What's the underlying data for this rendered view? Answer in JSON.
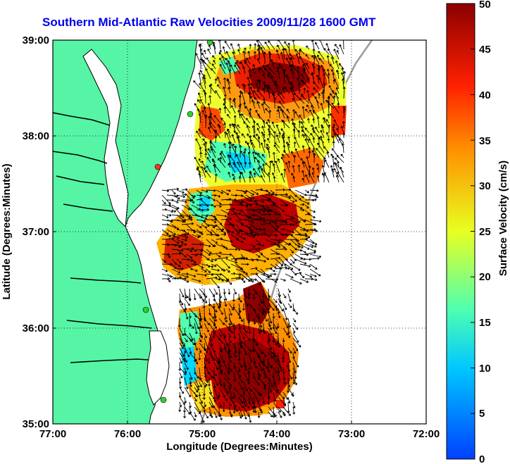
{
  "title": "Southern Mid-Atlantic Raw Velocities 2009/11/28 1600 GMT",
  "xlabel": "Longitude (Degrees:Minutes)",
  "ylabel": "Latitude (Degrees:Minutes)",
  "x_ticks": [
    "77:00",
    "76:00",
    "75:00",
    "74:00",
    "73:00",
    "72:00"
  ],
  "y_ticks": [
    "39:00",
    "38:00",
    "37:00",
    "36:00",
    "35:00"
  ],
  "colorbar": {
    "label": "Surface Velocity (cm/s)",
    "ticks": [
      "50",
      "45",
      "40",
      "35",
      "30",
      "25",
      "20",
      "15",
      "10",
      "5",
      "0"
    ],
    "min": 0,
    "max": 50,
    "colors": [
      "#0040ff",
      "#00c8ff",
      "#50ffb0",
      "#e8ff20",
      "#ff9000",
      "#ff2000",
      "#8b0000"
    ]
  },
  "map": {
    "lon_range": [
      -77,
      -72
    ],
    "lat_range": [
      35,
      39
    ],
    "land_color": "#55f5a5",
    "grid": "dotted"
  }
}
